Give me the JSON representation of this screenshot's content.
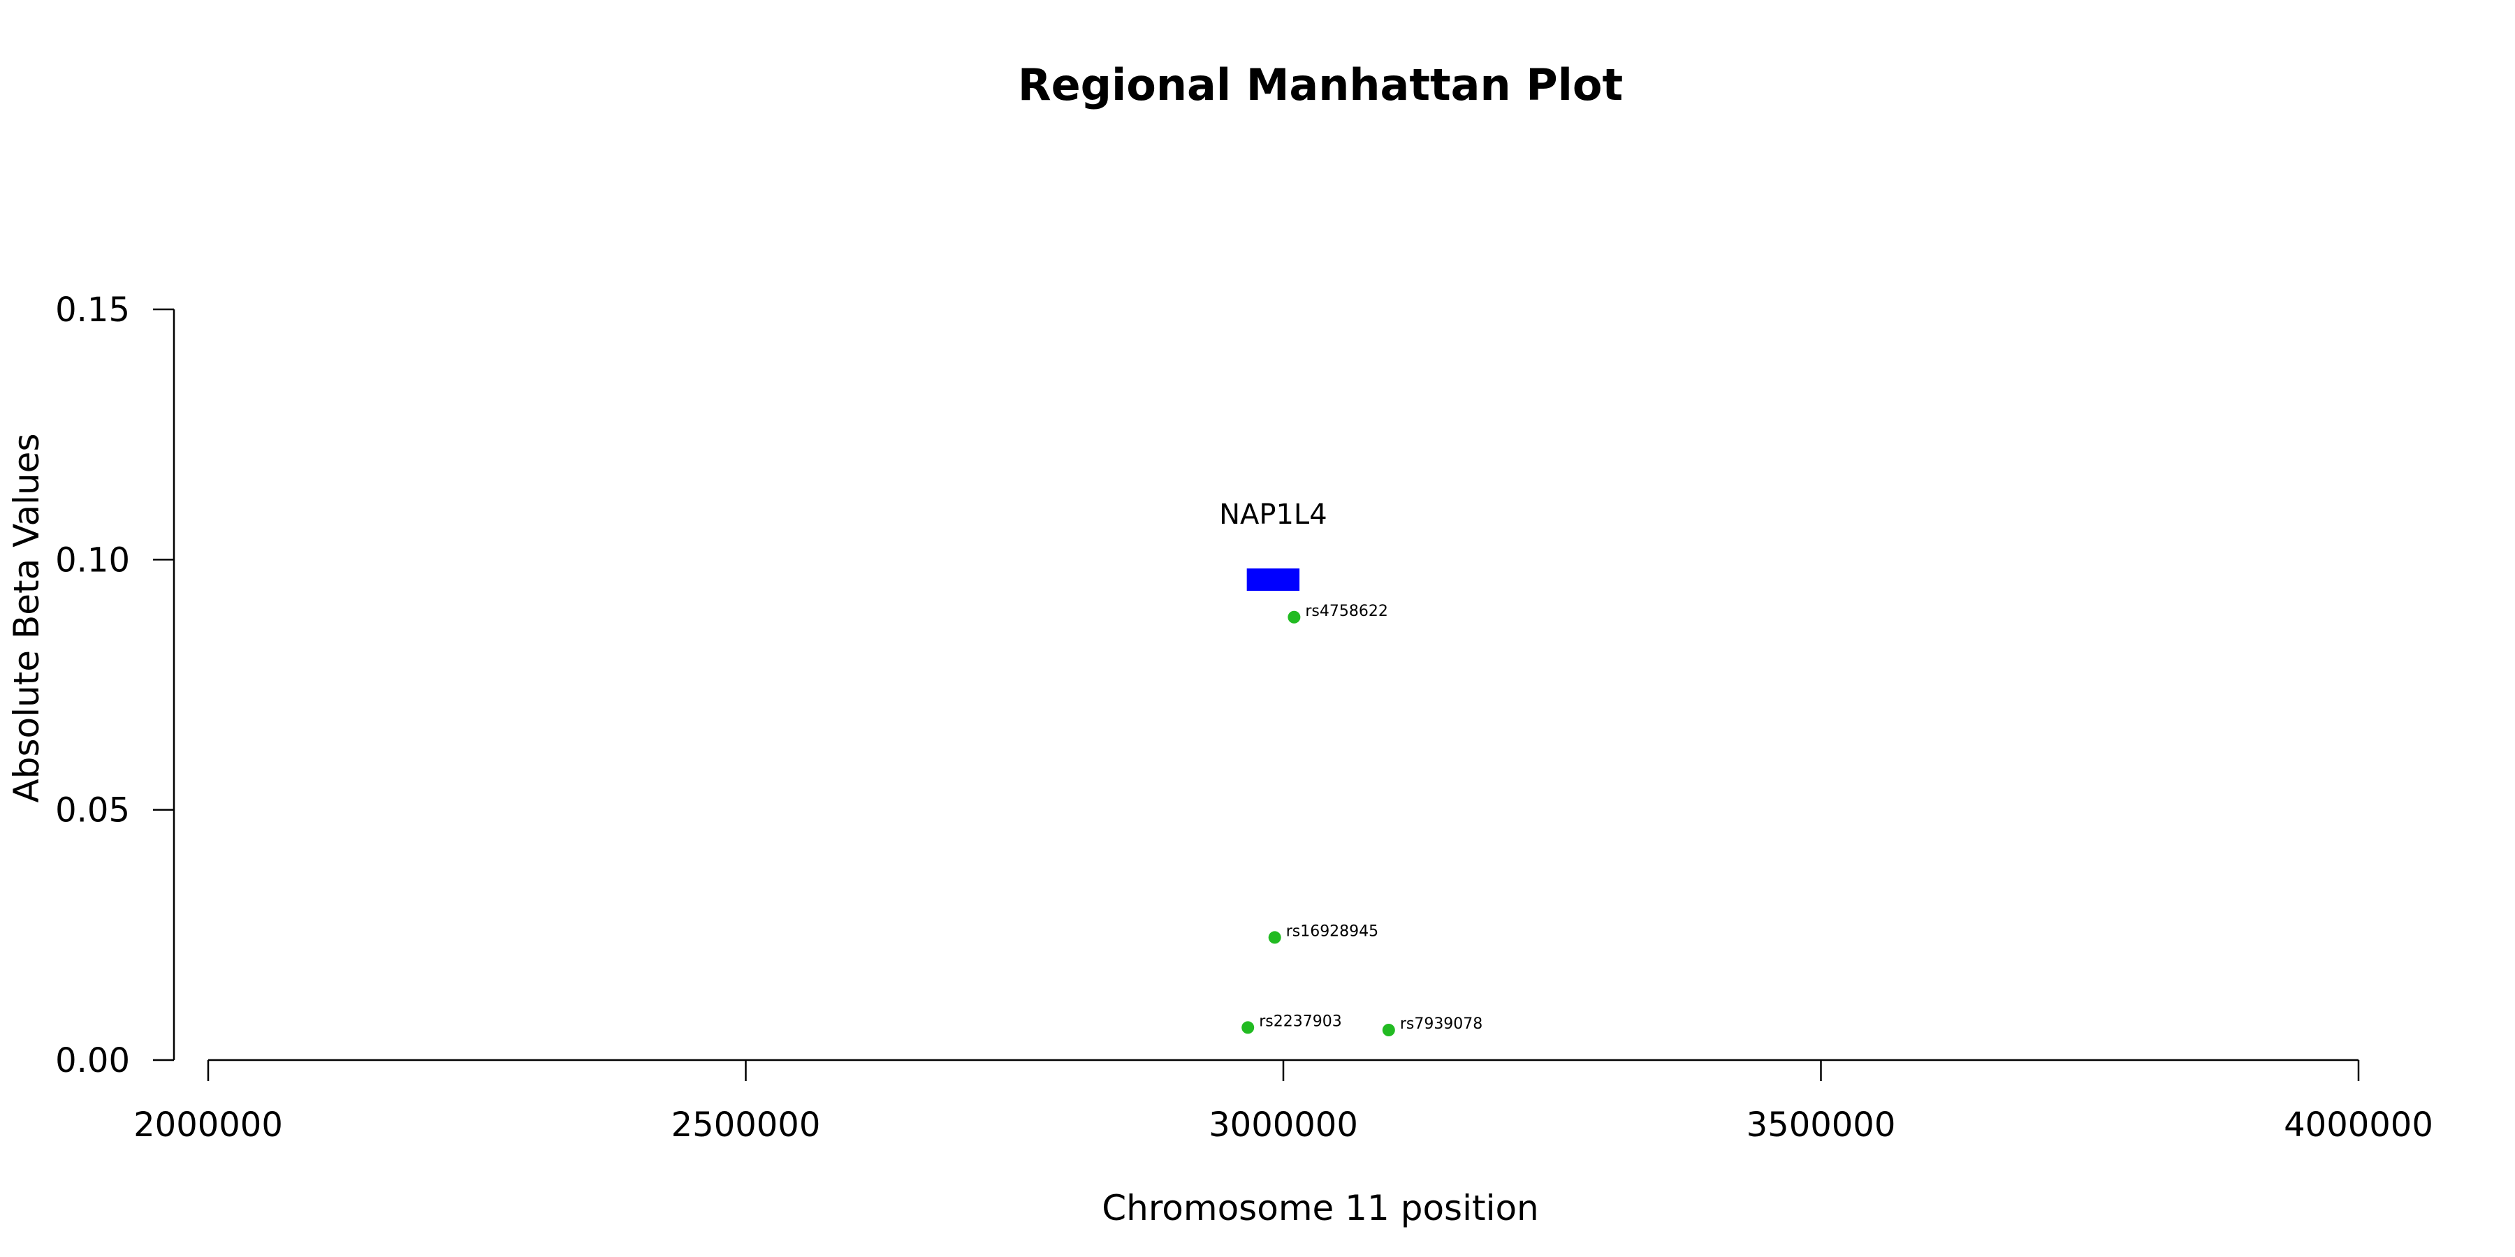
{
  "chart_data": {
    "type": "scatter",
    "title": "Regional Manhattan Plot",
    "xlabel": "Chromosome 11 position",
    "ylabel": "Absolute Beta Values",
    "xlim": [
      2000000,
      4000000
    ],
    "ylim": [
      0.0,
      0.15
    ],
    "x_ticks": [
      2000000,
      2500000,
      3000000,
      3500000,
      4000000
    ],
    "x_tick_labels": [
      "2000000",
      "2500000",
      "3000000",
      "3500000",
      "4000000"
    ],
    "y_ticks": [
      0.0,
      0.05,
      0.1,
      0.15
    ],
    "y_tick_labels": [
      "0.00",
      "0.05",
      "0.10",
      "0.15"
    ],
    "grid": false,
    "points": [
      {
        "label": "rs4758622",
        "x": 3010000,
        "y": 0.0885
      },
      {
        "label": "rs16928945",
        "x": 2992000,
        "y": 0.0245
      },
      {
        "label": "rs2237903",
        "x": 2967000,
        "y": 0.0065
      },
      {
        "label": "rs7939078",
        "x": 3098000,
        "y": 0.006
      }
    ],
    "genes": [
      {
        "name": "NAP1L4",
        "start": 2966000,
        "end": 3015000,
        "y": 0.096
      }
    ],
    "point_color": "#22bb22",
    "gene_color": "#0000ff"
  }
}
